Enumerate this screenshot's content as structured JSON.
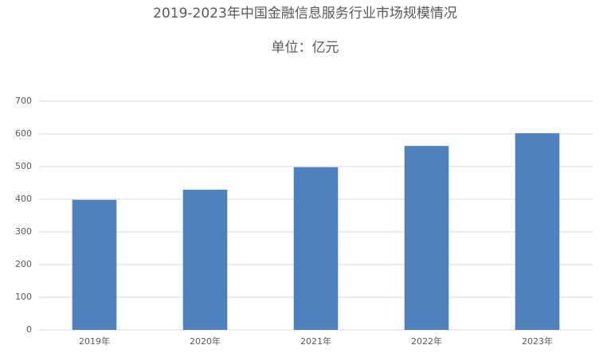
{
  "chart_data": {
    "type": "bar",
    "title": "2019-2023年中国金融信息服务行业市场规模情况",
    "subtitle": "单位：亿元",
    "categories": [
      "2019年",
      "2020年",
      "2021年",
      "2022年",
      "2023年"
    ],
    "values": [
      398,
      429,
      498,
      563,
      602
    ],
    "color": "#4f81bd",
    "ylim": [
      0,
      700
    ],
    "yticks": [
      0,
      100,
      200,
      300,
      400,
      500,
      600,
      700
    ],
    "grid": true
  }
}
